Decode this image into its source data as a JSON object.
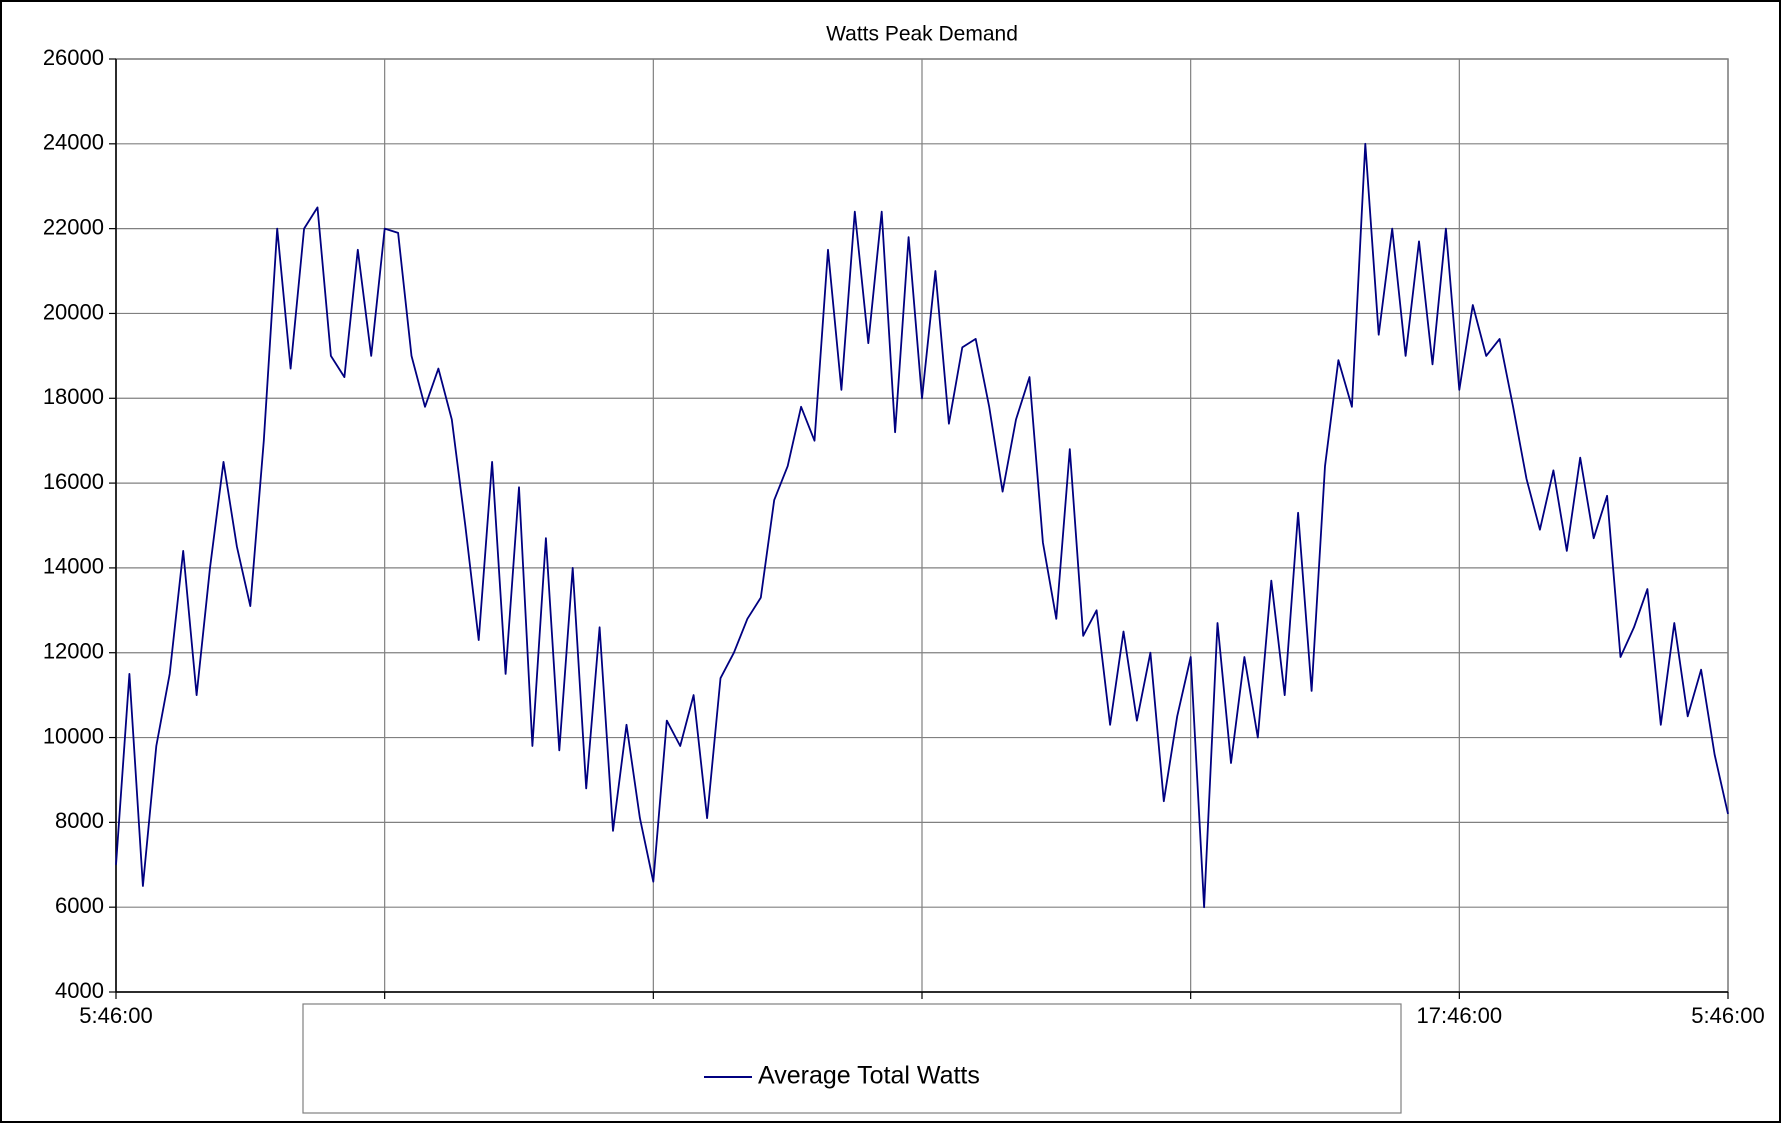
{
  "chart_data": {
    "type": "line",
    "title": "Watts Peak Demand",
    "categories": [
      "5:46:00",
      null,
      null,
      null,
      null,
      null,
      null,
      null,
      null,
      null,
      null,
      null,
      null,
      null,
      null,
      null,
      null,
      null,
      null,
      null,
      "17:46:00",
      null,
      null,
      null,
      null,
      null,
      null,
      null,
      null,
      null,
      null,
      null,
      null,
      null,
      null,
      null,
      null,
      null,
      null,
      null,
      "5:46:00",
      null,
      null,
      null,
      null,
      null,
      null,
      null,
      null,
      null,
      null,
      null,
      null,
      null,
      null,
      null,
      null,
      null,
      null,
      null,
      "17:46:00",
      null,
      null,
      null,
      null,
      null,
      null,
      null,
      null,
      null,
      null,
      null,
      null,
      null,
      null,
      null,
      null,
      null,
      null,
      null,
      "5:46:00",
      null,
      null,
      null,
      null,
      null,
      null,
      null,
      null,
      null,
      null,
      null,
      null,
      null,
      null,
      null,
      null,
      null,
      null,
      null,
      "17:46:00",
      null,
      null,
      null,
      null,
      null,
      null,
      null,
      null,
      null,
      null,
      null,
      null,
      null,
      null,
      null,
      null,
      null,
      null,
      null,
      "5:46:00"
    ],
    "series": [
      {
        "name": "Average Total Watts",
        "color": "#000080",
        "values": [
          7000,
          11500,
          6500,
          9800,
          11500,
          14400,
          11000,
          14000,
          16500,
          14500,
          13100,
          17000,
          22000,
          18700,
          22000,
          22500,
          19000,
          18500,
          21500,
          19000,
          22000,
          21900,
          19000,
          17800,
          18700,
          17500,
          15000,
          12300,
          16500,
          11500,
          15900,
          9800,
          14700,
          9700,
          14000,
          8800,
          12600,
          7800,
          10300,
          8100,
          6600,
          10400,
          9800,
          11000,
          8100,
          11400,
          12000,
          12800,
          13300,
          15600,
          16400,
          17800,
          17000,
          21500,
          18200,
          22400,
          19300,
          22400,
          17200,
          21800,
          18000,
          21000,
          17400,
          19200,
          19400,
          17800,
          15800,
          17500,
          18500,
          14600,
          12800,
          16800,
          12400,
          13000,
          10300,
          12500,
          10400,
          12000,
          8500,
          10500,
          11900,
          6000,
          12700,
          9400,
          11900,
          10000,
          13700,
          11000,
          15300,
          11100,
          16400,
          18900,
          17800,
          24000,
          19500,
          22000,
          19000,
          21700,
          18800,
          22000,
          18200,
          20200,
          19000,
          19400,
          17800,
          16100,
          14900,
          16300,
          14400,
          16600,
          14700,
          15700,
          11900,
          12600,
          13500,
          10300,
          12700,
          10500,
          11600,
          9600,
          8200
        ]
      }
    ],
    "ylim": [
      4000,
      26000
    ],
    "yticks": [
      4000,
      6000,
      8000,
      10000,
      12000,
      14000,
      16000,
      18000,
      20000,
      22000,
      24000,
      26000
    ],
    "grid": true,
    "legend": "bottom"
  }
}
